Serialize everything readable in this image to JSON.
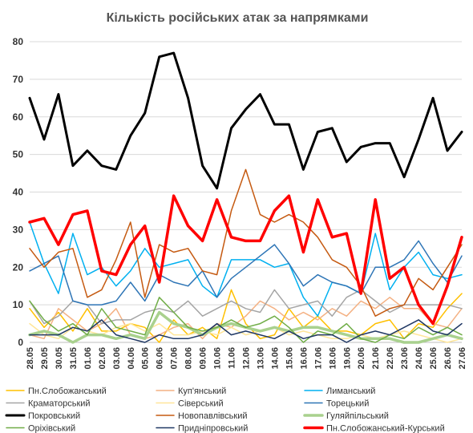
{
  "chart_data": {
    "type": "line",
    "title": "Кількість російських атак за напрямками",
    "xlabel": "",
    "ylabel": "",
    "ylim": [
      0,
      80
    ],
    "yticks": [
      0,
      10,
      20,
      30,
      40,
      50,
      60,
      70,
      80
    ],
    "grid": true,
    "legend_position": "bottom",
    "categories": [
      "28.05",
      "29.05",
      "30.05",
      "31.05",
      "01.06",
      "02.06",
      "03.06",
      "04.06",
      "05.06",
      "06.06",
      "07.06",
      "08.06",
      "09.06",
      "10.06",
      "11.06",
      "12.06",
      "13.06",
      "14.06",
      "15.06",
      "16.06",
      "17.06",
      "18.06",
      "19.06",
      "20.06",
      "21.06",
      "22.06",
      "23.06",
      "24.06",
      "25.06",
      "26.06",
      "27.06"
    ],
    "x": [
      "28.05",
      "",
      "30.05",
      "",
      "01.06",
      "",
      "03.06",
      "",
      "05.06",
      "",
      "07.06",
      "",
      "09.06",
      "",
      "11.06",
      "",
      "13.06",
      "",
      "15.06",
      "",
      "17.06",
      "",
      "19.06",
      "",
      "21.06",
      "",
      "23.06",
      "",
      "25.06",
      "",
      "27.06"
    ],
    "series": [
      {
        "name": "Пн.Слобожанський",
        "color": "#ffc000",
        "width": 1.5,
        "values": [
          9,
          4,
          8,
          3,
          9,
          3,
          3,
          5,
          4,
          0,
          6,
          2,
          4,
          1,
          14,
          5,
          1,
          2,
          9,
          4,
          7,
          3,
          3,
          2,
          5,
          6,
          1,
          5,
          4,
          9,
          13
        ]
      },
      {
        "name": "Куп'янський",
        "color": "#f4b183",
        "width": 1.5,
        "values": [
          2,
          1,
          9,
          6,
          3,
          5,
          9,
          2,
          1,
          2,
          4,
          5,
          1,
          5,
          4,
          7,
          11,
          9,
          6,
          8,
          6,
          9,
          7,
          11,
          9,
          12,
          9,
          9,
          5,
          4,
          9
        ]
      },
      {
        "name": "Лиманський",
        "color": "#00b0f0",
        "width": 1.5,
        "values": [
          32,
          21,
          13,
          29,
          18,
          20,
          15,
          19,
          25,
          20,
          21,
          22,
          15,
          12,
          22,
          22,
          22,
          20,
          21,
          12,
          7,
          16,
          15,
          13,
          29,
          14,
          20,
          24,
          18,
          17,
          18
        ]
      },
      {
        "name": "Краматорський",
        "color": "#a5a5a5",
        "width": 1.5,
        "values": [
          11,
          5,
          7,
          11,
          10,
          5,
          6,
          6,
          8,
          9,
          8,
          11,
          7,
          9,
          11,
          9,
          8,
          14,
          9,
          10,
          11,
          7,
          12,
          14,
          11,
          8,
          10,
          10,
          10,
          10,
          9
        ]
      },
      {
        "name": "Сіверський",
        "color": "#ffe699",
        "width": 1.5,
        "values": [
          5,
          2,
          1,
          4,
          3,
          2,
          4,
          5,
          3,
          5,
          2,
          2,
          3,
          2,
          4,
          2,
          3,
          4,
          2,
          3,
          2,
          1,
          1,
          2,
          1,
          2,
          3,
          2,
          1,
          0,
          1
        ]
      },
      {
        "name": "Торецький",
        "color": "#2e75b6",
        "width": 1.5,
        "values": [
          19,
          21,
          23,
          11,
          10,
          10,
          11,
          16,
          11,
          18,
          16,
          15,
          19,
          12,
          17,
          20,
          23,
          26,
          21,
          15,
          18,
          16,
          15,
          13,
          20,
          20,
          22,
          27,
          21,
          16,
          23
        ]
      },
      {
        "name": "Покровський",
        "color": "#000000",
        "width": 3,
        "values": [
          65,
          54,
          66,
          47,
          51,
          47,
          46,
          55,
          61,
          76,
          77,
          65,
          47,
          41,
          57,
          62,
          66,
          58,
          58,
          46,
          56,
          57,
          48,
          52,
          53,
          53,
          44,
          54,
          65,
          51,
          56
        ]
      },
      {
        "name": "Новопавлівський",
        "color": "#c55a11",
        "width": 1.5,
        "values": [
          25,
          20,
          24,
          25,
          12,
          14,
          22,
          32,
          12,
          26,
          24,
          25,
          19,
          18,
          35,
          46,
          34,
          32,
          34,
          32,
          28,
          22,
          20,
          15,
          7,
          9,
          10,
          17,
          14,
          20,
          26
        ]
      },
      {
        "name": "Гуляйпільський",
        "color": "#a9d18e",
        "width": 3.5,
        "values": [
          2,
          3,
          2,
          0,
          2,
          2,
          1,
          2,
          1,
          8,
          5,
          4,
          2,
          4,
          5,
          4,
          3,
          4,
          3,
          4,
          4,
          3,
          2,
          1,
          1,
          1,
          0,
          0,
          1,
          2,
          1
        ]
      },
      {
        "name": "Оріхівський",
        "color": "#70ad47",
        "width": 1.5,
        "values": [
          11,
          6,
          3,
          5,
          2,
          9,
          4,
          3,
          2,
          12,
          8,
          4,
          3,
          4,
          6,
          4,
          5,
          7,
          4,
          0,
          3,
          2,
          5,
          1,
          0,
          2,
          1,
          4,
          2,
          4,
          2
        ]
      },
      {
        "name": "Придніпровський",
        "color": "#203864",
        "width": 1.5,
        "values": [
          2,
          2,
          2,
          4,
          3,
          6,
          2,
          1,
          0,
          2,
          1,
          1,
          2,
          5,
          2,
          3,
          2,
          1,
          3,
          1,
          2,
          2,
          0,
          2,
          3,
          2,
          4,
          6,
          3,
          2,
          5
        ]
      },
      {
        "name": "Пн.Слобожанський-Курський",
        "color": "#ff0000",
        "width": 3.5,
        "values": [
          32,
          33,
          26,
          34,
          35,
          19,
          18,
          26,
          31,
          16,
          39,
          31,
          27,
          38,
          28,
          27,
          27,
          35,
          39,
          24,
          38,
          28,
          29,
          13,
          38,
          17,
          20,
          10,
          5,
          15,
          28
        ]
      }
    ]
  }
}
